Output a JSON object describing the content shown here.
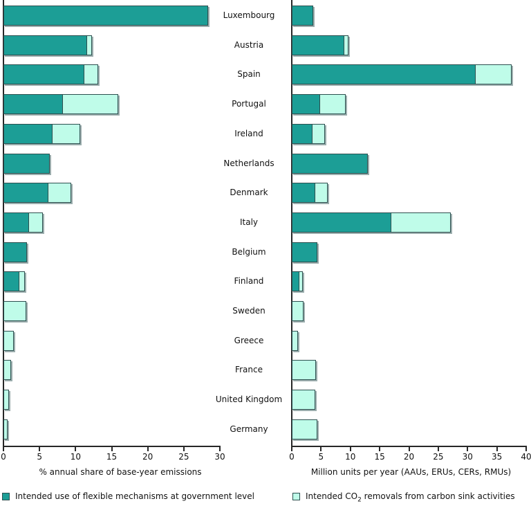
{
  "figure": {
    "description": "Two horizontal stacked bar charts comparing intended use of Kyoto flexible mechanisms and carbon sink removals by country",
    "colors": {
      "mechanisms": "#1C9E96",
      "sinks": "#BFFCE9",
      "bar_border": "#2D4F4F",
      "bar_shadow": "#9BADAD",
      "axis": "#262626",
      "background": "#FFFFFF"
    },
    "legend": {
      "items": [
        {
          "label": "Intended use of flexible mechanisms at government level",
          "swatch": "#1C9E96"
        },
        {
          "prefix": "Intended CO",
          "sub": "2",
          "suffix": " removals from carbon sink activities",
          "swatch": "#BFFCE9"
        }
      ]
    }
  },
  "chart_data": [
    {
      "type": "bar",
      "orientation": "horizontal",
      "stacked": true,
      "grid": false,
      "legend_position": "bottom",
      "categories": [
        "Luxembourg",
        "Austria",
        "Spain",
        "Portugal",
        "Ireland",
        "Netherlands",
        "Denmark",
        "Italy",
        "Belgium",
        "Finland",
        "Sweden",
        "Greece",
        "France",
        "United Kingdom",
        "Germany"
      ],
      "series": [
        {
          "name": "Intended use of flexible mechanisms at government level",
          "color": "#1C9E96",
          "values": [
            28.4,
            11.6,
            11.2,
            8.2,
            6.8,
            6.4,
            6.2,
            3.5,
            3.3,
            2.2,
            0,
            0,
            0,
            0,
            0
          ]
        },
        {
          "name": "Intended CO2 removals from carbon sink activities",
          "color": "#BFFCE9",
          "values": [
            0,
            0.8,
            2.0,
            7.8,
            3.9,
            0,
            3.3,
            2.0,
            0,
            0.9,
            3.2,
            1.4,
            1.1,
            0.8,
            0.6
          ]
        }
      ],
      "xlabel": "% annual share of base-year emissions",
      "ylabel": "",
      "xlim": [
        0,
        30
      ],
      "xticks": [
        0,
        5,
        10,
        15,
        20,
        25,
        30
      ]
    },
    {
      "type": "bar",
      "orientation": "horizontal",
      "stacked": true,
      "grid": false,
      "legend_position": "bottom",
      "categories": [
        "Luxembourg",
        "Austria",
        "Spain",
        "Portugal",
        "Ireland",
        "Netherlands",
        "Denmark",
        "Italy",
        "Belgium",
        "Finland",
        "Sweden",
        "Greece",
        "France",
        "United Kingdom",
        "Germany"
      ],
      "series": [
        {
          "name": "Intended use of flexible mechanisms at government level",
          "color": "#1C9E96",
          "values": [
            3.7,
            9.0,
            31.4,
            4.8,
            3.5,
            13.0,
            4.0,
            17.0,
            4.4,
            1.3,
            0,
            0,
            0,
            0,
            0
          ]
        },
        {
          "name": "Intended CO2 removals from carbon sink activities",
          "color": "#BFFCE9",
          "values": [
            0,
            0.8,
            6.2,
            4.5,
            2.3,
            0,
            2.3,
            10.3,
            0,
            0.7,
            2.0,
            1.1,
            4.1,
            4.0,
            4.4
          ]
        }
      ],
      "xlabel": "Million units per year (AAUs, ERUs, CERs, RMUs)",
      "ylabel": "",
      "xlim": [
        0,
        40
      ],
      "xticks": [
        0,
        5,
        10,
        15,
        20,
        25,
        30,
        35,
        40
      ]
    }
  ]
}
